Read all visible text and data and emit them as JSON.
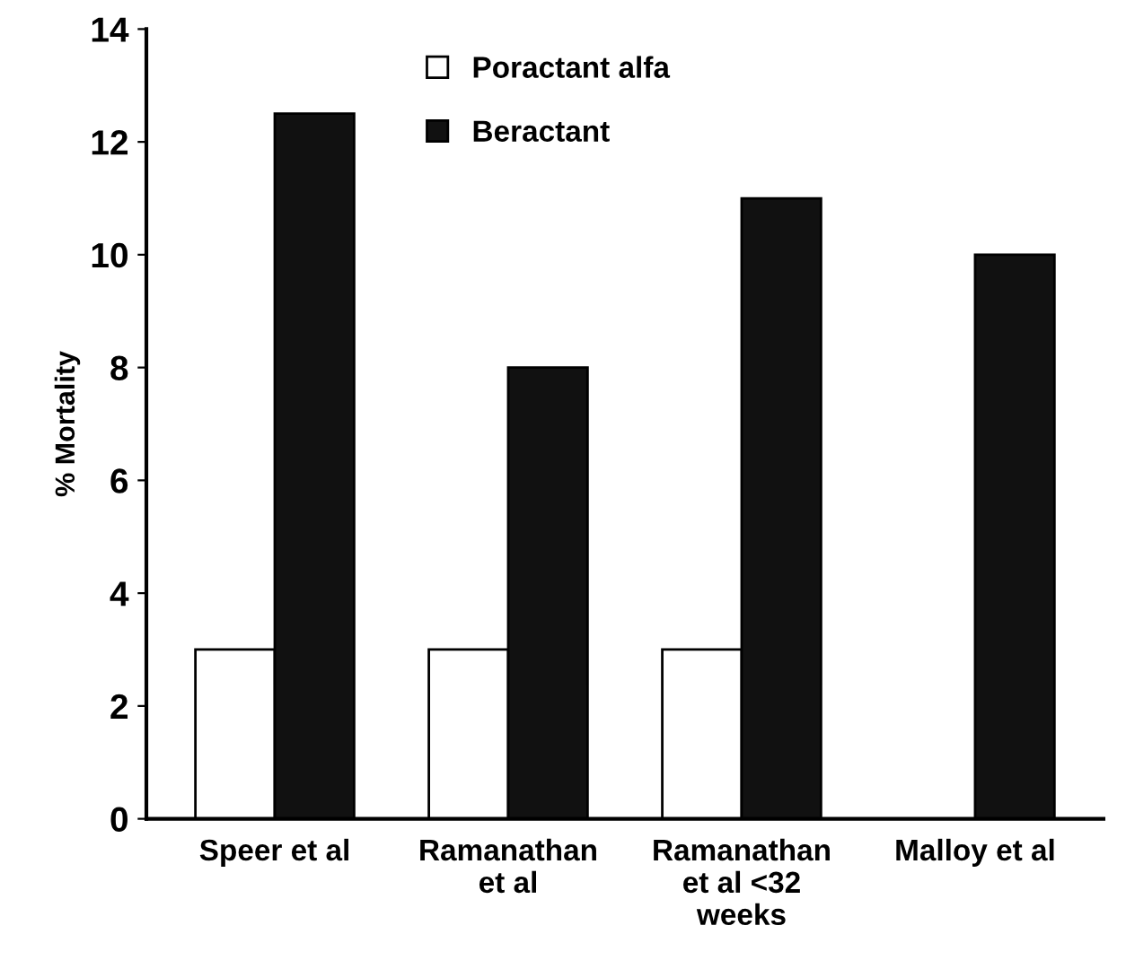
{
  "chart_data": {
    "type": "bar",
    "ylabel": "% Mortality",
    "categories": [
      "Speer et al",
      "Ramanathan\net al",
      "Ramanathan\net al <32\nweeks",
      "Malloy et al"
    ],
    "series": [
      {
        "name": "Poractant alfa",
        "color": "#ffffff",
        "values": [
          3,
          3,
          3,
          null
        ]
      },
      {
        "name": "Beractant",
        "color": "#111111",
        "values": [
          12.5,
          8,
          11,
          10
        ]
      }
    ],
    "ylim": [
      0,
      14
    ],
    "yticks": [
      0,
      2,
      4,
      6,
      8,
      10,
      12,
      14
    ],
    "grid": false,
    "legend": "top"
  }
}
